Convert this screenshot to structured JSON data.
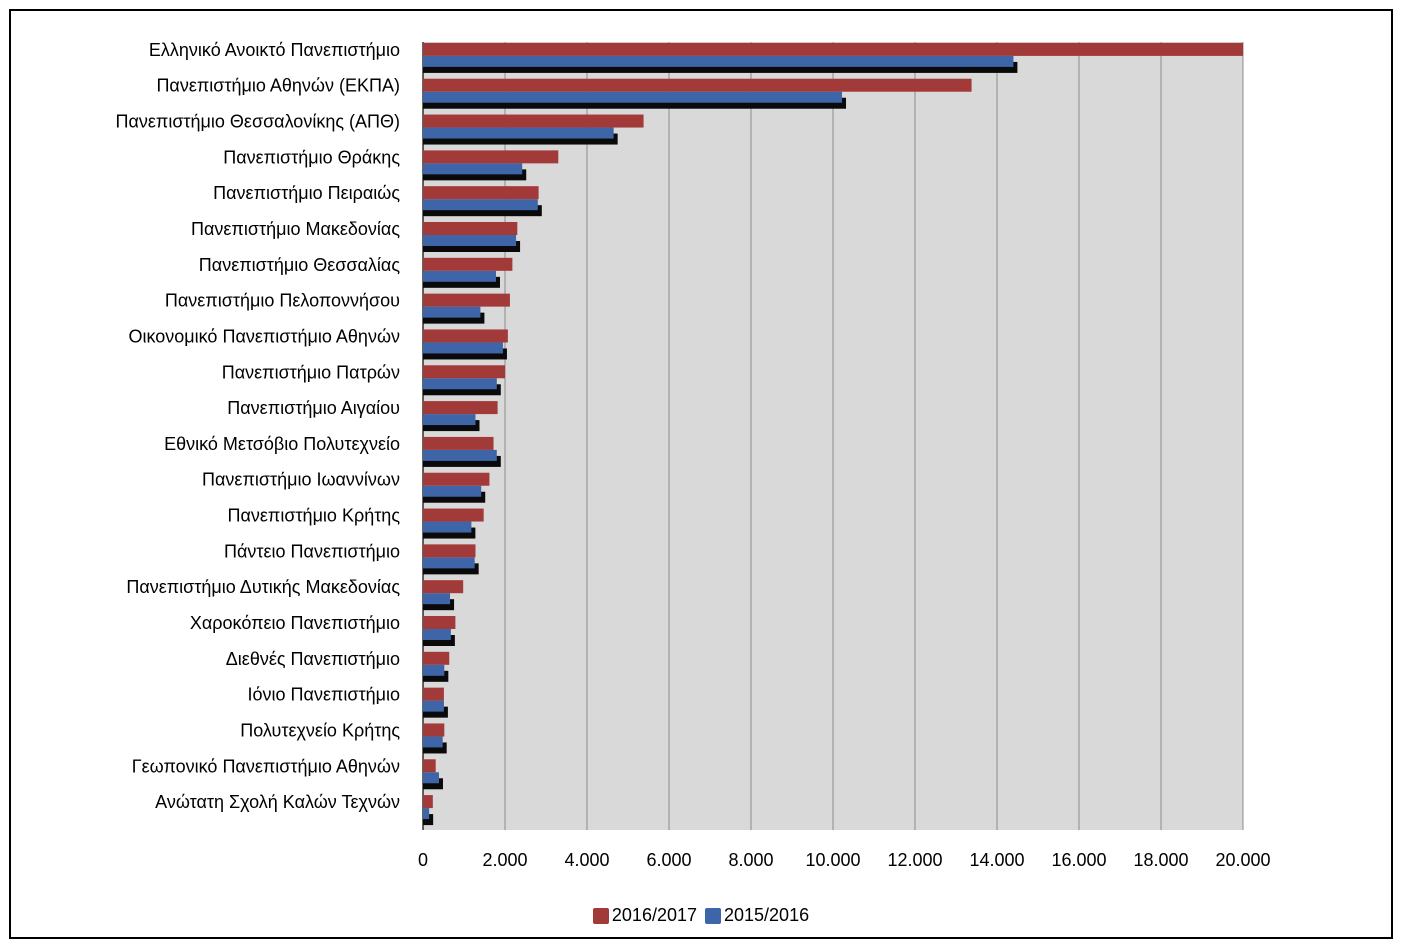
{
  "chart_data": {
    "type": "bar",
    "orientation": "horizontal",
    "categories": [
      "Ελληνικό Ανοικτό Πανεπιστήμιο",
      "Πανεπιστήμιο Αθηνών (ΕΚΠΑ)",
      "Πανεπιστήμιο Θεσσαλονίκης (ΑΠΘ)",
      "Πανεπιστήμιο Θράκης",
      "Πανεπιστήμιο Πειραιώς",
      "Πανεπιστήμιο Μακεδονίας",
      "Πανεπιστήμιο Θεσσαλίας",
      "Πανεπιστήμιο Πελοποννήσου",
      "Οικονομικό Πανεπιστήμιο Αθηνών",
      "Πανεπιστήμιο Πατρών",
      "Πανεπιστήμιο Αιγαίου",
      "Εθνικό Μετσόβιο Πολυτεχνείο",
      "Πανεπιστήμιο Ιωαννίνων",
      "Πανεπιστήμιο Κρήτης",
      "Πάντειο Πανεπιστήμιο",
      "Πανεπιστήμιο Δυτικής Μακεδονίας",
      "Χαροκόπειο Πανεπιστήμιο",
      "Διεθνές Πανεπιστήμιο",
      "Ιόνιο Πανεπιστήμιο",
      "Πολυτεχνείο Κρήτης",
      "Γεωπονικό Πανεπιστήμιο Αθηνών",
      "Ανώτατη Σχολή Καλών Τεχνών"
    ],
    "series": [
      {
        "name": "2016/2017",
        "color": "#A33A3A",
        "values": [
          20050,
          13380,
          5380,
          3300,
          2820,
          2300,
          2180,
          2120,
          2070,
          2000,
          1820,
          1720,
          1620,
          1480,
          1280,
          980,
          790,
          640,
          510,
          520,
          310,
          240
        ]
      },
      {
        "name": "2015/2016",
        "color": "#3D65A8",
        "values": [
          14400,
          10220,
          4650,
          2420,
          2800,
          2270,
          1780,
          1400,
          1950,
          1800,
          1280,
          1800,
          1420,
          1180,
          1260,
          660,
          680,
          520,
          510,
          480,
          390,
          150
        ]
      }
    ],
    "xlim": [
      0,
      20000
    ],
    "xticks": [
      "0",
      "2.000",
      "4.000",
      "6.000",
      "8.000",
      "10.000",
      "12.000",
      "14.000",
      "16.000",
      "18.000",
      "20.000"
    ],
    "grid": true,
    "legend": "bottom",
    "plot_background": "#D9D9D9"
  }
}
